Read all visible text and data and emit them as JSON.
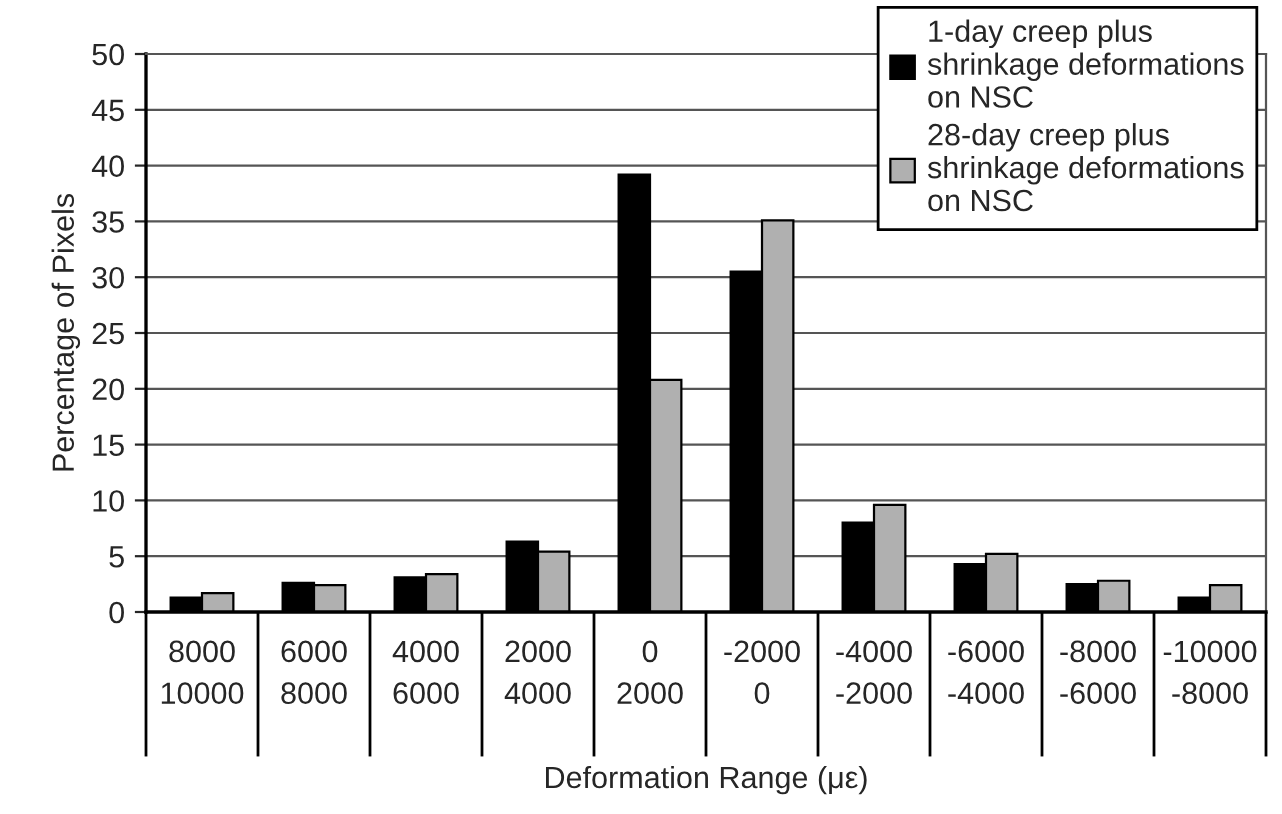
{
  "chart_data": {
    "type": "bar",
    "xlabel": "Deformation Range (με)",
    "ylabel": "Percentage of Pixels",
    "categories": [
      "8000\n10000",
      "6000\n8000",
      "4000\n6000",
      "2000\n4000",
      "0\n2000",
      "-2000\n0",
      "-4000\n-2000",
      "-6000\n-4000",
      "-8000\n-6000",
      "-10000\n-8000"
    ],
    "series": [
      {
        "name": "1-day creep plus\nshrinkage deformations\non NSC",
        "color": "#000000",
        "values": [
          1.3,
          2.6,
          3.1,
          6.3,
          39.2,
          30.5,
          8.0,
          4.3,
          2.5,
          1.3
        ]
      },
      {
        "name": "28-day creep plus\nshrinkage deformations\non NSC",
        "color": "#b0b0b0",
        "values": [
          1.7,
          2.4,
          3.4,
          5.4,
          20.8,
          35.1,
          9.6,
          5.2,
          2.8,
          2.4
        ]
      }
    ],
    "ylim": [
      0,
      50
    ],
    "yticks": [
      0,
      5,
      10,
      15,
      20,
      25,
      30,
      35,
      40,
      45,
      50
    ],
    "grid": "y",
    "legend": "top right"
  }
}
